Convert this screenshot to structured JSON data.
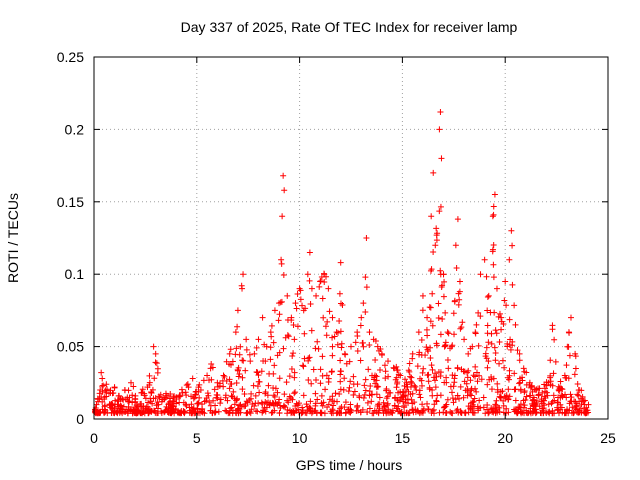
{
  "chart_data": {
    "type": "scatter",
    "title": "Day 337 of 2025, Rate Of TEC Index for receiver lamp",
    "xlabel": "GPS time / hours",
    "ylabel": "ROTI / TECUs",
    "xlim": [
      0,
      25
    ],
    "ylim": [
      0,
      0.25
    ],
    "xticks": [
      0,
      5,
      10,
      15,
      20,
      25
    ],
    "yticks": [
      0,
      0.05,
      0.1,
      0.15,
      0.2,
      0.25
    ],
    "xtick_labels": [
      "0",
      "5",
      "10",
      "15",
      "20",
      "25"
    ],
    "ytick_labels": [
      "0",
      "0.05",
      "0.1",
      "0.15",
      "0.2",
      "0.25"
    ],
    "grid": true,
    "marker": "+",
    "marker_color": "#ff0000",
    "series": [
      {
        "values_note": "",
        "points": [
          [
            0.1,
            0.006
          ],
          [
            0.2,
            0.012
          ],
          [
            0.3,
            0.02
          ],
          [
            0.35,
            0.032
          ],
          [
            0.4,
            0.028
          ],
          [
            0.5,
            0.015
          ],
          [
            0.6,
            0.024
          ],
          [
            0.8,
            0.018
          ],
          [
            1.0,
            0.022
          ],
          [
            1.2,
            0.016
          ],
          [
            1.5,
            0.02
          ],
          [
            1.8,
            0.025
          ],
          [
            2.0,
            0.014
          ],
          [
            2.3,
            0.018
          ],
          [
            2.6,
            0.022
          ],
          [
            2.9,
            0.05
          ],
          [
            3.0,
            0.045
          ],
          [
            3.3,
            0.012
          ],
          [
            3.6,
            0.016
          ],
          [
            4.0,
            0.015
          ],
          [
            4.3,
            0.018
          ],
          [
            4.6,
            0.022
          ],
          [
            4.8,
            0.028
          ],
          [
            5.2,
            0.02
          ],
          [
            5.5,
            0.03
          ],
          [
            5.7,
            0.038
          ],
          [
            6.0,
            0.025
          ],
          [
            6.3,
            0.03
          ],
          [
            6.6,
            0.045
          ],
          [
            6.9,
            0.06
          ],
          [
            7.0,
            0.075
          ],
          [
            7.2,
            0.09
          ],
          [
            7.25,
            0.1
          ],
          [
            7.4,
            0.055
          ],
          [
            7.6,
            0.04
          ],
          [
            7.8,
            0.045
          ],
          [
            8.0,
            0.055
          ],
          [
            8.2,
            0.07
          ],
          [
            8.4,
            0.05
          ],
          [
            8.6,
            0.06
          ],
          [
            8.8,
            0.075
          ],
          [
            9.0,
            0.08
          ],
          [
            9.1,
            0.11
          ],
          [
            9.15,
            0.14
          ],
          [
            9.2,
            0.168
          ],
          [
            9.25,
            0.158
          ],
          [
            9.4,
            0.085
          ],
          [
            9.6,
            0.07
          ],
          [
            9.8,
            0.08
          ],
          [
            10.0,
            0.09
          ],
          [
            10.2,
            0.075
          ],
          [
            10.4,
            0.1
          ],
          [
            10.5,
            0.115
          ],
          [
            10.6,
            0.09
          ],
          [
            10.8,
            0.085
          ],
          [
            11.0,
            0.095
          ],
          [
            11.2,
            0.1
          ],
          [
            11.4,
            0.09
          ],
          [
            11.6,
            0.07
          ],
          [
            11.8,
            0.06
          ],
          [
            12.0,
            0.108
          ],
          [
            12.2,
            0.045
          ],
          [
            12.5,
            0.05
          ],
          [
            12.8,
            0.06
          ],
          [
            13.0,
            0.07
          ],
          [
            13.1,
            0.08
          ],
          [
            13.2,
            0.098
          ],
          [
            13.25,
            0.125
          ],
          [
            13.4,
            0.06
          ],
          [
            13.6,
            0.055
          ],
          [
            13.8,
            0.05
          ],
          [
            14.0,
            0.045
          ],
          [
            14.3,
            0.04
          ],
          [
            14.6,
            0.035
          ],
          [
            14.9,
            0.03
          ],
          [
            15.2,
            0.025
          ],
          [
            15.5,
            0.045
          ],
          [
            15.8,
            0.06
          ],
          [
            16.0,
            0.085
          ],
          [
            16.2,
            0.07
          ],
          [
            16.4,
            0.14
          ],
          [
            16.5,
            0.17
          ],
          [
            16.6,
            0.12
          ],
          [
            16.8,
            0.2
          ],
          [
            16.85,
            0.212
          ],
          [
            16.9,
            0.18
          ],
          [
            17.0,
            0.1
          ],
          [
            17.2,
            0.06
          ],
          [
            17.4,
            0.05
          ],
          [
            17.6,
            0.12
          ],
          [
            17.7,
            0.138
          ],
          [
            17.8,
            0.095
          ],
          [
            18.0,
            0.055
          ],
          [
            18.2,
            0.045
          ],
          [
            18.4,
            0.05
          ],
          [
            18.6,
            0.065
          ],
          [
            18.8,
            0.1
          ],
          [
            19.0,
            0.11
          ],
          [
            19.2,
            0.085
          ],
          [
            19.4,
            0.14
          ],
          [
            19.5,
            0.155
          ],
          [
            19.6,
            0.09
          ],
          [
            19.8,
            0.07
          ],
          [
            20.0,
            0.095
          ],
          [
            20.2,
            0.11
          ],
          [
            20.3,
            0.13
          ],
          [
            20.5,
            0.065
          ],
          [
            20.7,
            0.045
          ],
          [
            20.9,
            0.035
          ],
          [
            21.2,
            0.025
          ],
          [
            21.5,
            0.02
          ],
          [
            21.8,
            0.018
          ],
          [
            22.1,
            0.025
          ],
          [
            22.3,
            0.062
          ],
          [
            22.6,
            0.02
          ],
          [
            22.9,
            0.03
          ],
          [
            23.1,
            0.06
          ],
          [
            23.2,
            0.07
          ],
          [
            23.4,
            0.045
          ],
          [
            23.6,
            0.02
          ],
          [
            23.8,
            0.012
          ],
          [
            24.0,
            0.006
          ]
        ]
      }
    ]
  }
}
